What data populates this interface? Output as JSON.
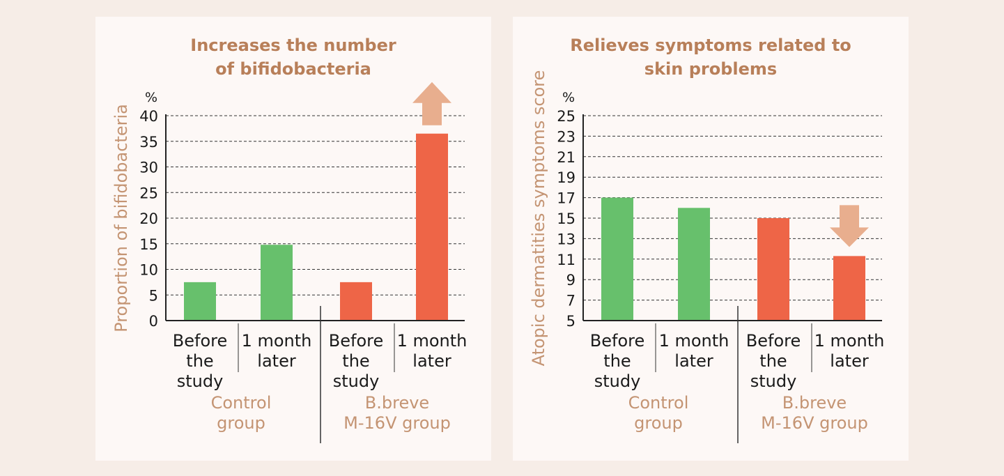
{
  "colors": {
    "background": "#f6ede7",
    "panel": "#fdf8f6",
    "title": "#b87f59",
    "axis_label": "#c49473",
    "text": "#1a1a1a",
    "control": "#67c06c",
    "treatment": "#ee6547",
    "arrow": "#e8ae8e"
  },
  "chart_data": [
    {
      "type": "bar",
      "title_lines": [
        "Increases the number",
        "of bifidobacteria"
      ],
      "ylabel": "Proportion of bifidobacteria",
      "yunit": "%",
      "ylim": [
        0,
        40
      ],
      "yticks": [
        "0",
        "5",
        "10",
        "15",
        "20",
        "25",
        "30",
        "35",
        "40"
      ],
      "grid": true,
      "categories": [
        {
          "lines": [
            "Before",
            "the",
            "study"
          ],
          "group": "control"
        },
        {
          "lines": [
            "1 month",
            "later"
          ],
          "group": "control"
        },
        {
          "lines": [
            "Before",
            "the",
            "study"
          ],
          "group": "treatment"
        },
        {
          "lines": [
            "1 month",
            "later"
          ],
          "group": "treatment"
        }
      ],
      "values": [
        7.5,
        14.8,
        7.5,
        36.5
      ],
      "groups": [
        {
          "key": "control",
          "lines": [
            "Control",
            "group"
          ]
        },
        {
          "key": "treatment",
          "lines": [
            "B.breve",
            "M-16V group"
          ]
        }
      ],
      "annotation": {
        "type": "arrow",
        "direction": "up",
        "bar_index": 3
      }
    },
    {
      "type": "bar",
      "title_lines": [
        "Relieves symptoms related to",
        "skin problems"
      ],
      "ylabel": "Atopic dermatities symptoms score",
      "yunit": "%",
      "ylim": [
        5,
        25
      ],
      "yticks": [
        "5",
        "7",
        "9",
        "11",
        "13",
        "15",
        "17",
        "19",
        "21",
        "23",
        "25"
      ],
      "grid": true,
      "categories": [
        {
          "lines": [
            "Before",
            "the",
            "study"
          ],
          "group": "control"
        },
        {
          "lines": [
            "1 month",
            "later"
          ],
          "group": "control"
        },
        {
          "lines": [
            "Before",
            "the",
            "study"
          ],
          "group": "treatment"
        },
        {
          "lines": [
            "1 month",
            "later"
          ],
          "group": "treatment"
        }
      ],
      "values": [
        17.0,
        16.0,
        15.0,
        11.3
      ],
      "groups": [
        {
          "key": "control",
          "lines": [
            "Control",
            "group"
          ]
        },
        {
          "key": "treatment",
          "lines": [
            "B.breve",
            "M-16V group"
          ]
        }
      ],
      "annotation": {
        "type": "arrow",
        "direction": "down",
        "bar_index": 3
      }
    }
  ]
}
